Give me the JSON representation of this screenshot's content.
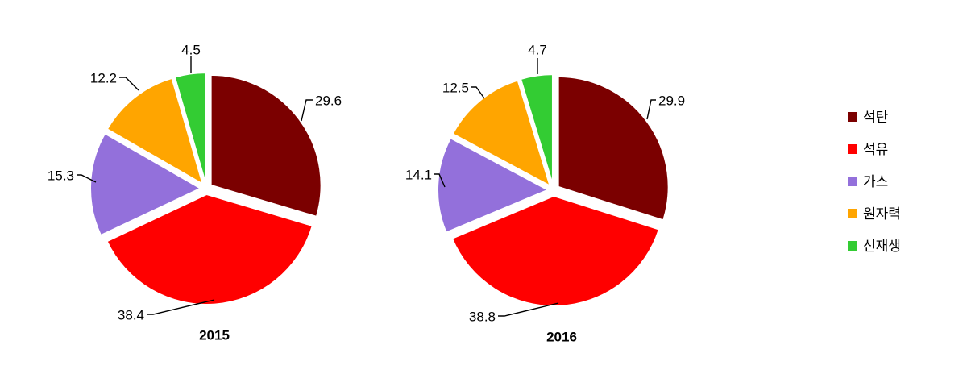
{
  "chart_data": [
    {
      "type": "pie",
      "title": "2015",
      "categories": [
        "석탄",
        "석유",
        "가스",
        "원자력",
        "신재생"
      ],
      "values": [
        29.6,
        38.4,
        15.3,
        12.2,
        4.5
      ],
      "labels": [
        "29.6",
        "38.4",
        "15.3",
        "12.2",
        "4.5"
      ]
    },
    {
      "type": "pie",
      "title": "2016",
      "categories": [
        "석탄",
        "석유",
        "가스",
        "원자력",
        "신재생"
      ],
      "values": [
        29.9,
        38.8,
        14.1,
        12.5,
        4.7
      ],
      "labels": [
        "29.9",
        "38.8",
        "14.1",
        "12.5",
        "4.7"
      ]
    }
  ],
  "legend": {
    "placement": "right",
    "items": [
      {
        "label": "석탄",
        "color": "#7b0000"
      },
      {
        "label": "석유",
        "color": "#ff0000"
      },
      {
        "label": "가스",
        "color": "#9370db"
      },
      {
        "label": "원자력",
        "color": "#ffa500"
      },
      {
        "label": "신재생",
        "color": "#33cc33"
      }
    ]
  }
}
